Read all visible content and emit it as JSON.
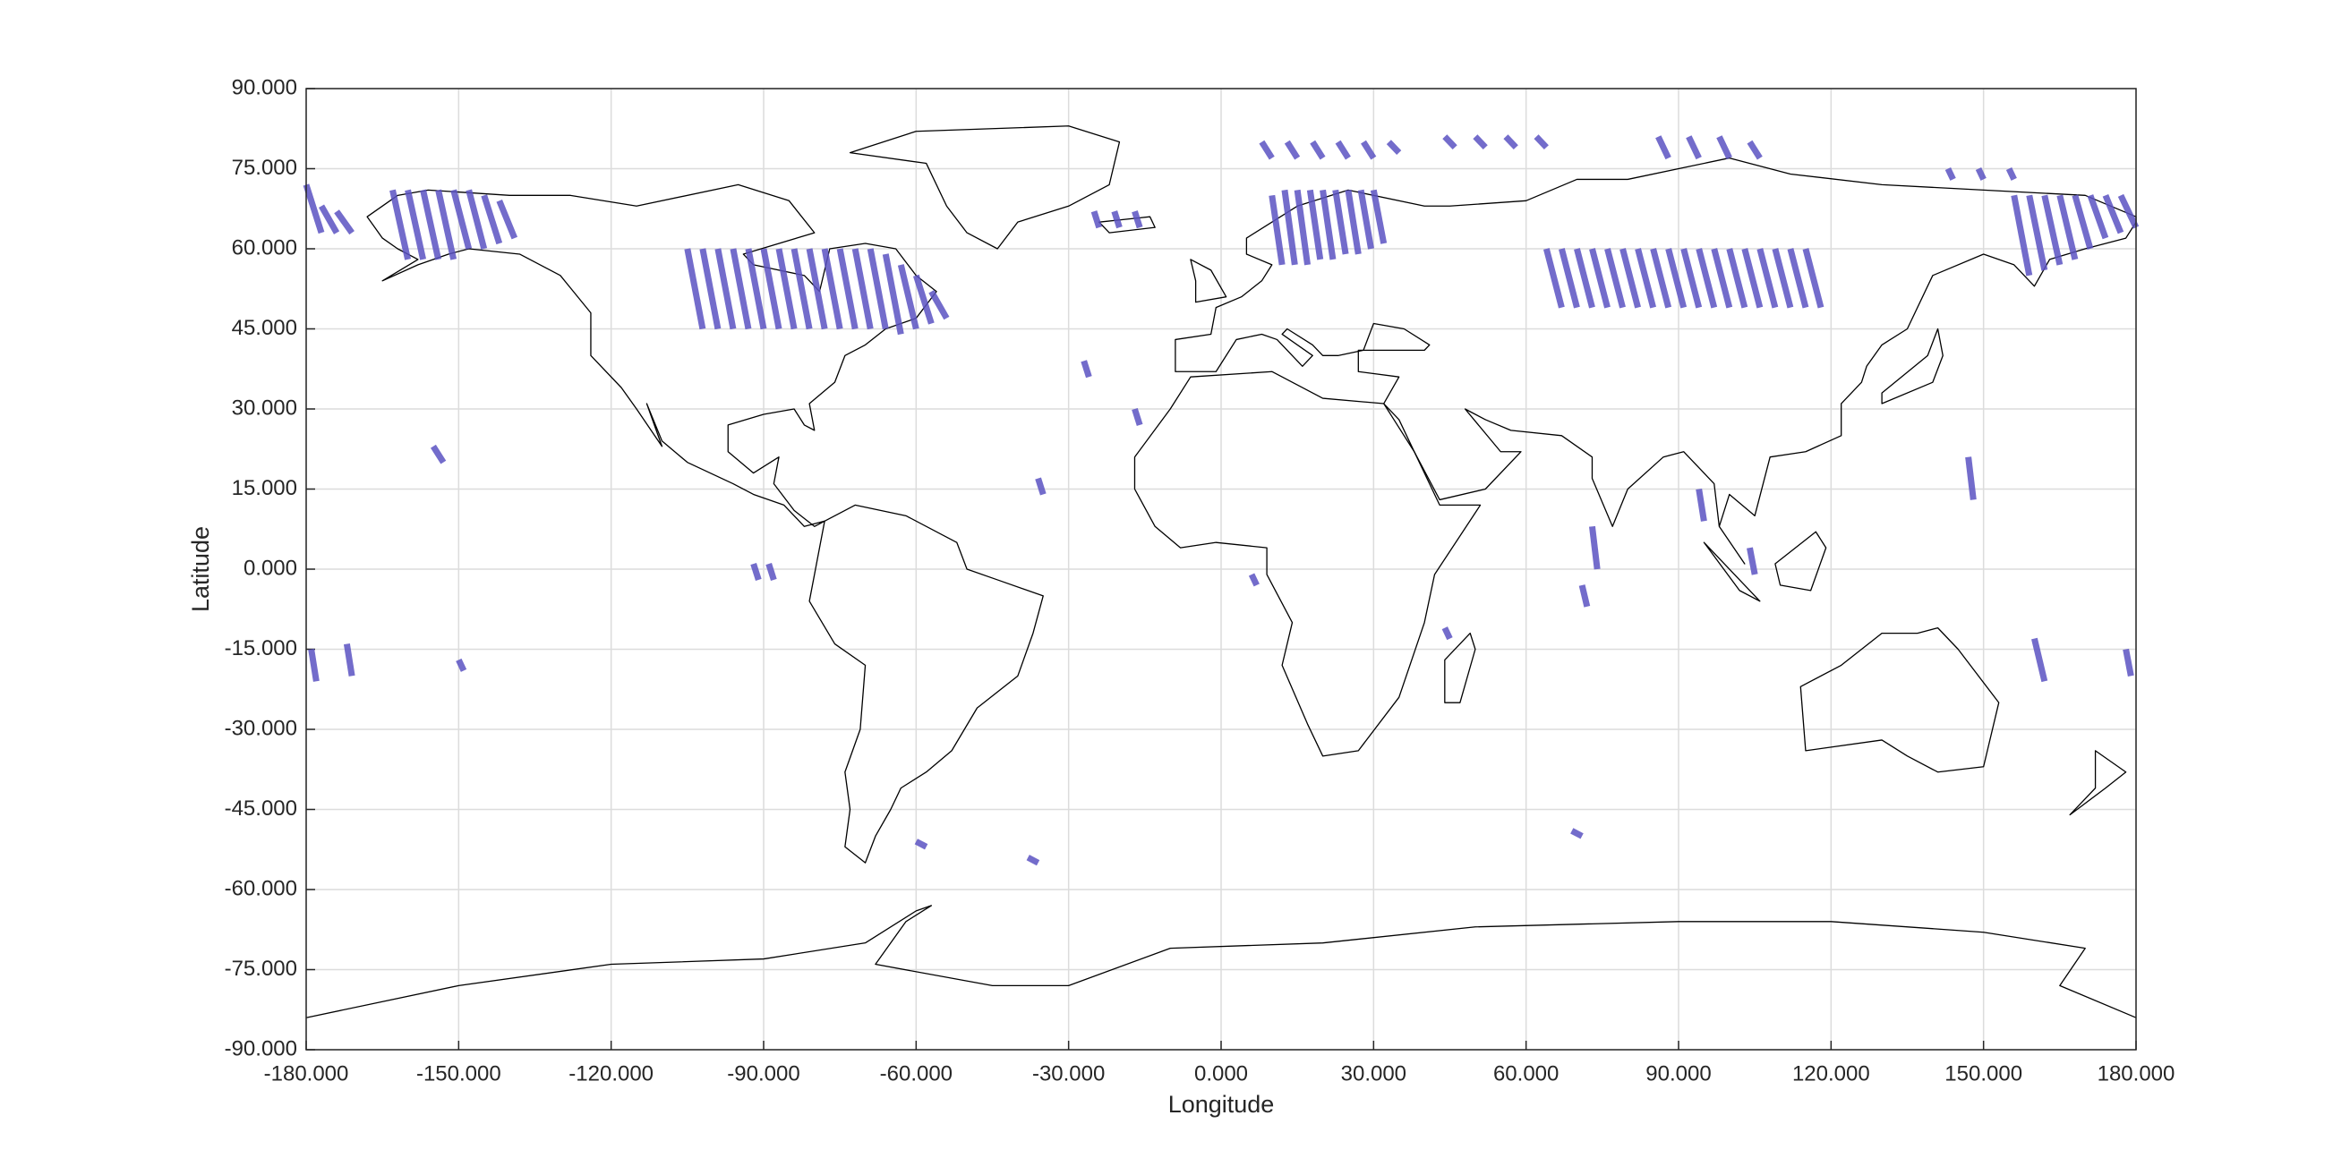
{
  "chart_data": {
    "type": "map",
    "xlabel": "Longitude",
    "ylabel": "Latitude",
    "xlim": [
      -180,
      180
    ],
    "ylim": [
      -90,
      90
    ],
    "xticks": [
      {
        "value": -180,
        "label": "-180.000"
      },
      {
        "value": -150,
        "label": "-150.000"
      },
      {
        "value": -120,
        "label": "-120.000"
      },
      {
        "value": -90,
        "label": "-90.000"
      },
      {
        "value": -60,
        "label": "-60.000"
      },
      {
        "value": -30,
        "label": "-30.000"
      },
      {
        "value": 0,
        "label": "0.000"
      },
      {
        "value": 30,
        "label": "30.000"
      },
      {
        "value": 60,
        "label": "60.000"
      },
      {
        "value": 90,
        "label": "90.000"
      },
      {
        "value": 120,
        "label": "120.000"
      },
      {
        "value": 150,
        "label": "150.000"
      },
      {
        "value": 180,
        "label": "180.000"
      }
    ],
    "yticks": [
      {
        "value": -90,
        "label": "-90.000"
      },
      {
        "value": -75,
        "label": "-75.000"
      },
      {
        "value": -60,
        "label": "-60.000"
      },
      {
        "value": -45,
        "label": "-45.000"
      },
      {
        "value": -30,
        "label": "-30.000"
      },
      {
        "value": -15,
        "label": "-15.000"
      },
      {
        "value": 0,
        "label": "0.000"
      },
      {
        "value": 15,
        "label": "15.000"
      },
      {
        "value": 30,
        "label": "30.000"
      },
      {
        "value": 45,
        "label": "45.000"
      },
      {
        "value": 60,
        "label": "60.000"
      },
      {
        "value": 75,
        "label": "75.000"
      },
      {
        "value": 90,
        "label": "90.000"
      }
    ],
    "grid": true,
    "color": "#5b52c2",
    "swaths": [
      {
        "lon": [
          -105,
          -102
        ],
        "lat": [
          60,
          45
        ]
      },
      {
        "lon": [
          -102,
          -99
        ],
        "lat": [
          60,
          45
        ]
      },
      {
        "lon": [
          -99,
          -96
        ],
        "lat": [
          60,
          45
        ]
      },
      {
        "lon": [
          -96,
          -93
        ],
        "lat": [
          60,
          45
        ]
      },
      {
        "lon": [
          -93,
          -90
        ],
        "lat": [
          60,
          45
        ]
      },
      {
        "lon": [
          -90,
          -87
        ],
        "lat": [
          60,
          45
        ]
      },
      {
        "lon": [
          -87,
          -84
        ],
        "lat": [
          60,
          45
        ]
      },
      {
        "lon": [
          -84,
          -81
        ],
        "lat": [
          60,
          45
        ]
      },
      {
        "lon": [
          -81,
          -78
        ],
        "lat": [
          60,
          45
        ]
      },
      {
        "lon": [
          -78,
          -75
        ],
        "lat": [
          60,
          45
        ]
      },
      {
        "lon": [
          -75,
          -72
        ],
        "lat": [
          60,
          45
        ]
      },
      {
        "lon": [
          -72,
          -69
        ],
        "lat": [
          60,
          45
        ]
      },
      {
        "lon": [
          -69,
          -66
        ],
        "lat": [
          60,
          45
        ]
      },
      {
        "lon": [
          -66,
          -63
        ],
        "lat": [
          59,
          44
        ]
      },
      {
        "lon": [
          -63,
          -60
        ],
        "lat": [
          57,
          45
        ]
      },
      {
        "lon": [
          -60,
          -57
        ],
        "lat": [
          55,
          46
        ]
      },
      {
        "lon": [
          -57,
          -54
        ],
        "lat": [
          52,
          47
        ]
      },
      {
        "lon": [
          64,
          67
        ],
        "lat": [
          60,
          49
        ]
      },
      {
        "lon": [
          67,
          70
        ],
        "lat": [
          60,
          49
        ]
      },
      {
        "lon": [
          70,
          73
        ],
        "lat": [
          60,
          49
        ]
      },
      {
        "lon": [
          73,
          76
        ],
        "lat": [
          60,
          49
        ]
      },
      {
        "lon": [
          76,
          79
        ],
        "lat": [
          60,
          49
        ]
      },
      {
        "lon": [
          79,
          82
        ],
        "lat": [
          60,
          49
        ]
      },
      {
        "lon": [
          82,
          85
        ],
        "lat": [
          60,
          49
        ]
      },
      {
        "lon": [
          85,
          88
        ],
        "lat": [
          60,
          49
        ]
      },
      {
        "lon": [
          88,
          91
        ],
        "lat": [
          60,
          49
        ]
      },
      {
        "lon": [
          91,
          94
        ],
        "lat": [
          60,
          49
        ]
      },
      {
        "lon": [
          94,
          97
        ],
        "lat": [
          60,
          49
        ]
      },
      {
        "lon": [
          97,
          100
        ],
        "lat": [
          60,
          49
        ]
      },
      {
        "lon": [
          100,
          103
        ],
        "lat": [
          60,
          49
        ]
      },
      {
        "lon": [
          103,
          106
        ],
        "lat": [
          60,
          49
        ]
      },
      {
        "lon": [
          106,
          109
        ],
        "lat": [
          60,
          49
        ]
      },
      {
        "lon": [
          109,
          112
        ],
        "lat": [
          60,
          49
        ]
      },
      {
        "lon": [
          112,
          115
        ],
        "lat": [
          60,
          49
        ]
      },
      {
        "lon": [
          115,
          118
        ],
        "lat": [
          60,
          49
        ]
      },
      {
        "lon": [
          -163,
          -160
        ],
        "lat": [
          71,
          58
        ]
      },
      {
        "lon": [
          -160,
          -157
        ],
        "lat": [
          71,
          58
        ]
      },
      {
        "lon": [
          -157,
          -154
        ],
        "lat": [
          71,
          58
        ]
      },
      {
        "lon": [
          -154,
          -151
        ],
        "lat": [
          71,
          58
        ]
      },
      {
        "lon": [
          -151,
          -148
        ],
        "lat": [
          71,
          60
        ]
      },
      {
        "lon": [
          -148,
          -145
        ],
        "lat": [
          71,
          60
        ]
      },
      {
        "lon": [
          -145,
          -142
        ],
        "lat": [
          70,
          61
        ]
      },
      {
        "lon": [
          -142,
          -139
        ],
        "lat": [
          69,
          62
        ]
      },
      {
        "lon": [
          -180,
          -177
        ],
        "lat": [
          72,
          63
        ]
      },
      {
        "lon": [
          -177,
          -174
        ],
        "lat": [
          68,
          63
        ]
      },
      {
        "lon": [
          -174,
          -171
        ],
        "lat": [
          67,
          63
        ]
      },
      {
        "lon": [
          10,
          12
        ],
        "lat": [
          70,
          57
        ]
      },
      {
        "lon": [
          12.5,
          14.5
        ],
        "lat": [
          71,
          57
        ]
      },
      {
        "lon": [
          15,
          17
        ],
        "lat": [
          71,
          57
        ]
      },
      {
        "lon": [
          17.5,
          19.5
        ],
        "lat": [
          71,
          58
        ]
      },
      {
        "lon": [
          20,
          22
        ],
        "lat": [
          71,
          58
        ]
      },
      {
        "lon": [
          22.5,
          24.5
        ],
        "lat": [
          71,
          59
        ]
      },
      {
        "lon": [
          25,
          27
        ],
        "lat": [
          71,
          59
        ]
      },
      {
        "lon": [
          27.5,
          29.5
        ],
        "lat": [
          71,
          60
        ]
      },
      {
        "lon": [
          30,
          32
        ],
        "lat": [
          71,
          61
        ]
      },
      {
        "lon": [
          156,
          159
        ],
        "lat": [
          70,
          55
        ]
      },
      {
        "lon": [
          159,
          162
        ],
        "lat": [
          70,
          56
        ]
      },
      {
        "lon": [
          162,
          165
        ],
        "lat": [
          70,
          57
        ]
      },
      {
        "lon": [
          165,
          168
        ],
        "lat": [
          70,
          58
        ]
      },
      {
        "lon": [
          168,
          171
        ],
        "lat": [
          70,
          60
        ]
      },
      {
        "lon": [
          171,
          174
        ],
        "lat": [
          70,
          62
        ]
      },
      {
        "lon": [
          174,
          177
        ],
        "lat": [
          70,
          63
        ]
      },
      {
        "lon": [
          177,
          180
        ],
        "lat": [
          70,
          64
        ]
      },
      {
        "lon": [
          8,
          10
        ],
        "lat": [
          80,
          77
        ]
      },
      {
        "lon": [
          13,
          15
        ],
        "lat": [
          80,
          77
        ]
      },
      {
        "lon": [
          18,
          20
        ],
        "lat": [
          80,
          77
        ]
      },
      {
        "lon": [
          23,
          25
        ],
        "lat": [
          80,
          77
        ]
      },
      {
        "lon": [
          28,
          30
        ],
        "lat": [
          80,
          77
        ]
      },
      {
        "lon": [
          33,
          35
        ],
        "lat": [
          80,
          78
        ]
      },
      {
        "lon": [
          44,
          46
        ],
        "lat": [
          81,
          79
        ]
      },
      {
        "lon": [
          50,
          52
        ],
        "lat": [
          81,
          79
        ]
      },
      {
        "lon": [
          56,
          58
        ],
        "lat": [
          81,
          79
        ]
      },
      {
        "lon": [
          62,
          64
        ],
        "lat": [
          81,
          79
        ]
      },
      {
        "lon": [
          86,
          88
        ],
        "lat": [
          81,
          77
        ]
      },
      {
        "lon": [
          92,
          94
        ],
        "lat": [
          81,
          77
        ]
      },
      {
        "lon": [
          98,
          100
        ],
        "lat": [
          81,
          77
        ]
      },
      {
        "lon": [
          104,
          106
        ],
        "lat": [
          80,
          77
        ]
      },
      {
        "lon": [
          143,
          144
        ],
        "lat": [
          75,
          73
        ]
      },
      {
        "lon": [
          149,
          150
        ],
        "lat": [
          75,
          73
        ]
      },
      {
        "lon": [
          155,
          156
        ],
        "lat": [
          75,
          73
        ]
      },
      {
        "lon": [
          -25,
          -24
        ],
        "lat": [
          67,
          64
        ]
      },
      {
        "lon": [
          -21,
          -20
        ],
        "lat": [
          67,
          64
        ]
      },
      {
        "lon": [
          -17,
          -16
        ],
        "lat": [
          67,
          64
        ]
      },
      {
        "lon": [
          -155,
          -153
        ],
        "lat": [
          23,
          20
        ]
      },
      {
        "lon": [
          -92,
          -91
        ],
        "lat": [
          1,
          -2
        ]
      },
      {
        "lon": [
          -89,
          -88
        ],
        "lat": [
          1,
          -2
        ]
      },
      {
        "lon": [
          -36,
          -35
        ],
        "lat": [
          17,
          14
        ]
      },
      {
        "lon": [
          -27,
          -26
        ],
        "lat": [
          39,
          36
        ]
      },
      {
        "lon": [
          -17,
          -16
        ],
        "lat": [
          30,
          27
        ]
      },
      {
        "lon": [
          6,
          7
        ],
        "lat": [
          -1,
          -3
        ]
      },
      {
        "lon": [
          73,
          74
        ],
        "lat": [
          8,
          0
        ]
      },
      {
        "lon": [
          71,
          72
        ],
        "lat": [
          -3,
          -7
        ]
      },
      {
        "lon": [
          147,
          148
        ],
        "lat": [
          21,
          13
        ]
      },
      {
        "lon": [
          160,
          162
        ],
        "lat": [
          -13,
          -21
        ]
      },
      {
        "lon": [
          178,
          179
        ],
        "lat": [
          -15,
          -20
        ]
      },
      {
        "lon": [
          -179,
          -178
        ],
        "lat": [
          -15,
          -21
        ]
      },
      {
        "lon": [
          -172,
          -171
        ],
        "lat": [
          -14,
          -20
        ]
      },
      {
        "lon": [
          -60,
          -58
        ],
        "lat": [
          -51,
          -52
        ]
      },
      {
        "lon": [
          -38,
          -36
        ],
        "lat": [
          -54,
          -55
        ]
      },
      {
        "lon": [
          69,
          71
        ],
        "lat": [
          -49,
          -50
        ]
      },
      {
        "lon": [
          94,
          95
        ],
        "lat": [
          15,
          9
        ]
      },
      {
        "lon": [
          104,
          105
        ],
        "lat": [
          4,
          -1
        ]
      },
      {
        "lon": [
          44,
          45
        ],
        "lat": [
          -11,
          -13
        ]
      },
      {
        "lon": [
          -150,
          -149
        ],
        "lat": [
          -17,
          -19
        ]
      }
    ]
  }
}
